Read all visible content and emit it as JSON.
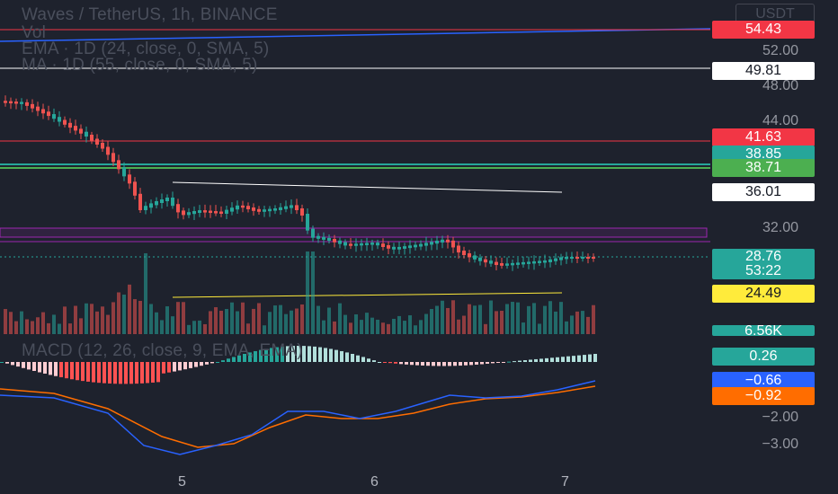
{
  "symbol_title": "Waves / TetherUS, 1h, BINANCE",
  "vol_label": "Vol",
  "ema_label": "EMA · 1D (24, close, 0, SMA, 5)",
  "ma_label": "MA · 1D (55, close, 0, SMA, 5)",
  "macd_label": "MACD (12, 26, close, 9, EMA, EMA)",
  "currency": "USDT",
  "price_ticks": [
    "52.00",
    "48.00",
    "44.00",
    "32.00"
  ],
  "macd_ticks": [
    "−2.00",
    "−3.00"
  ],
  "x_ticks": [
    "5",
    "6",
    "7"
  ],
  "badges": {
    "ema": {
      "text": "54.43",
      "bg": "#f23645",
      "fg": "#ffffff"
    },
    "ma": {
      "text": "49.81",
      "bg": "#ffffff",
      "fg": "#131722"
    },
    "red_line": {
      "text": "41.63",
      "bg": "#f23645",
      "fg": "#ffffff"
    },
    "teal_line": {
      "text": "38.85",
      "bg": "#26a69a",
      "fg": "#ffffff"
    },
    "green_line": {
      "text": "38.71",
      "bg": "#4caf50",
      "fg": "#ffffff"
    },
    "white_line": {
      "text": "36.01",
      "bg": "#ffffff",
      "fg": "#131722"
    },
    "last_price": {
      "price": "28.76",
      "countdown": "53:22",
      "bg": "#26a69a"
    },
    "yellow_line": {
      "text": "24.49",
      "bg": "#ffeb3b",
      "fg": "#131722"
    },
    "volume": {
      "text": "6.56K",
      "bg": "#26a69a",
      "fg": "#ffffff"
    },
    "macd_hist": {
      "text": "0.26",
      "bg": "#26a69a",
      "fg": "#ffffff"
    },
    "macd_line": {
      "text": "−0.66",
      "bg": "#2962ff",
      "fg": "#ffffff"
    },
    "signal_line": {
      "text": "−0.92",
      "bg": "#ff6d00",
      "fg": "#ffffff"
    }
  },
  "colors": {
    "background": "#1e222d",
    "up": "#26a69a",
    "down": "#ef5350",
    "macd": "#2962ff",
    "signal": "#ff6d00",
    "zone": "#9c27b0"
  }
}
